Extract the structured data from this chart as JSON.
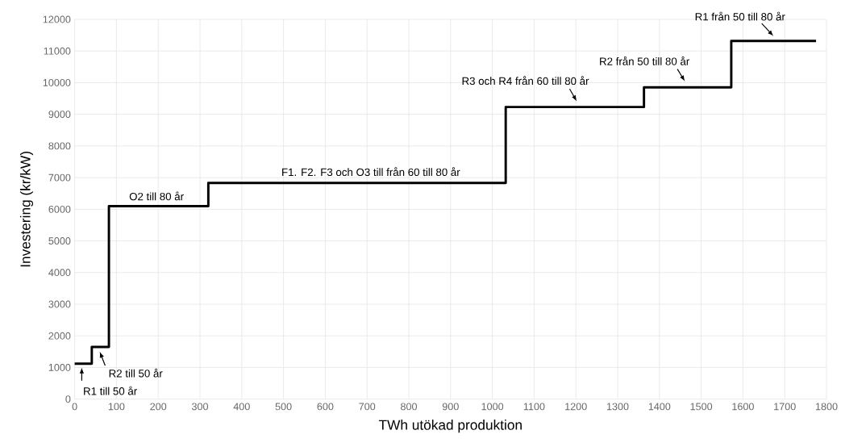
{
  "chart_data": {
    "type": "step",
    "xlabel": "TWh utökad produktion",
    "ylabel": "Investering (kr/kW)",
    "x": [
      0,
      41,
      82,
      320,
      1032,
      1363,
      1572,
      1775
    ],
    "series": [
      {
        "color": "#000000",
        "values": [
          1120,
          1650,
          6100,
          6830,
          9230,
          9850,
          11320,
          11320
        ]
      }
    ],
    "xlim": [
      0,
      1800
    ],
    "ylim": [
      0,
      12000
    ],
    "xticks": [
      0,
      100,
      200,
      300,
      400,
      500,
      600,
      700,
      800,
      900,
      1000,
      1100,
      1200,
      1300,
      1400,
      1500,
      1600,
      1700,
      1800
    ],
    "yticks": [
      0,
      1000,
      2000,
      3000,
      4000,
      5000,
      6000,
      7000,
      8000,
      9000,
      10000,
      11000,
      12000
    ],
    "grid": true,
    "marker": "none",
    "annotations": [
      {
        "text": "R1 till 50 år",
        "x": 17,
        "y": 1120
      },
      {
        "text": "R2 till 50 år",
        "x": 60,
        "y": 1650
      },
      {
        "text": "O2 till 80 år",
        "x": 196,
        "y": 6100
      },
      {
        "text": "F1. F2. F3 och O3 till från 60 till 80 år",
        "x": 709,
        "y": 6830
      },
      {
        "text": "R3 och R4 från 60 till 80 år",
        "x": 1200,
        "y": 9230
      },
      {
        "text": "R2 från 50 till 80 år",
        "x": 1460,
        "y": 9850
      },
      {
        "text": "R1 från 50 till 80 år",
        "x": 1672,
        "y": 11320
      }
    ]
  }
}
